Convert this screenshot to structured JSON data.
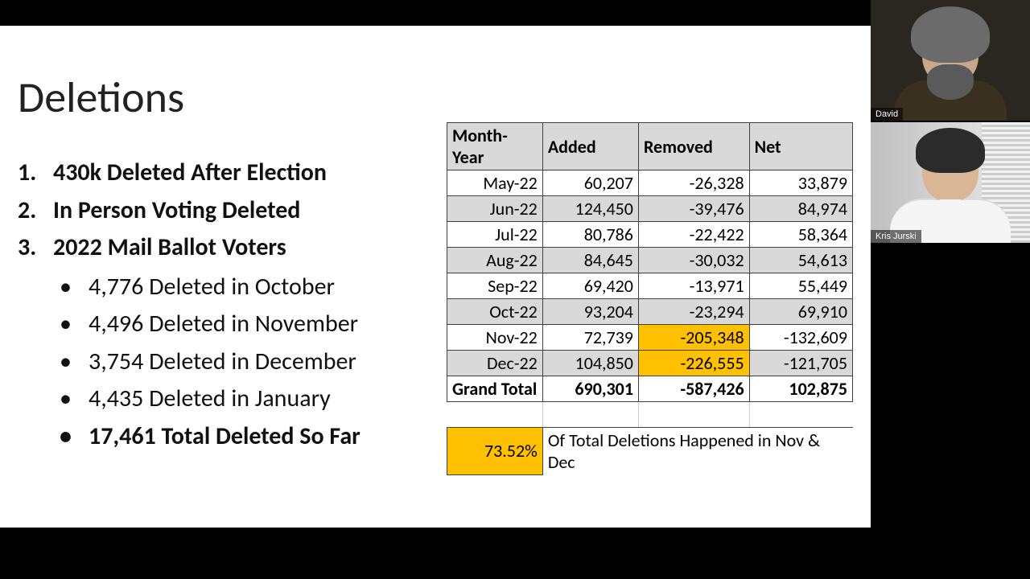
{
  "slide": {
    "title": "Deletions",
    "bullets": [
      {
        "text": "430k Deleted After Election"
      },
      {
        "text": "In Person Voting Deleted"
      },
      {
        "text": "2022 Mail Ballot Voters"
      }
    ],
    "sub_bullets": [
      {
        "text": "4,776 Deleted in October",
        "bold": false
      },
      {
        "text": "4,496 Deleted in November",
        "bold": false
      },
      {
        "text": "3,754 Deleted in December",
        "bold": false
      },
      {
        "text": "4,435 Deleted in January",
        "bold": false
      },
      {
        "text": "17,461 Total Deleted So Far",
        "bold": true
      }
    ]
  },
  "table": {
    "headers": [
      "Month-Year",
      "Added",
      "Removed",
      "Net"
    ],
    "rows": [
      {
        "label": "May-22",
        "added": "60,207",
        "removed": "-26,328",
        "net": "33,879",
        "shaded": false,
        "hl_removed": false
      },
      {
        "label": "Jun-22",
        "added": "124,450",
        "removed": "-39,476",
        "net": "84,974",
        "shaded": true,
        "hl_removed": false
      },
      {
        "label": "Jul-22",
        "added": "80,786",
        "removed": "-22,422",
        "net": "58,364",
        "shaded": false,
        "hl_removed": false
      },
      {
        "label": "Aug-22",
        "added": "84,645",
        "removed": "-30,032",
        "net": "54,613",
        "shaded": true,
        "hl_removed": false
      },
      {
        "label": "Sep-22",
        "added": "69,420",
        "removed": "-13,971",
        "net": "55,449",
        "shaded": false,
        "hl_removed": false
      },
      {
        "label": "Oct-22",
        "added": "93,204",
        "removed": "-23,294",
        "net": "69,910",
        "shaded": true,
        "hl_removed": false
      },
      {
        "label": "Nov-22",
        "added": "72,739",
        "removed": "-205,348",
        "net": "-132,609",
        "shaded": false,
        "hl_removed": true
      },
      {
        "label": "Dec-22",
        "added": "104,850",
        "removed": "-226,555",
        "net": "-121,705",
        "shaded": true,
        "hl_removed": true
      }
    ],
    "total": {
      "label": "Grand Total",
      "added": "690,301",
      "removed": "-587,426",
      "net": "102,875"
    },
    "footnote": {
      "pct": "73.52%",
      "text": "Of Total Deletions Happened in Nov & Dec"
    },
    "colors": {
      "header_bg": "#d9d9d9",
      "shaded_bg": "#d9d9d9",
      "highlight_bg": "#ffc000",
      "border": "#404040"
    }
  },
  "participants": [
    {
      "name": "David"
    },
    {
      "name": "Kris Jurski"
    }
  ]
}
